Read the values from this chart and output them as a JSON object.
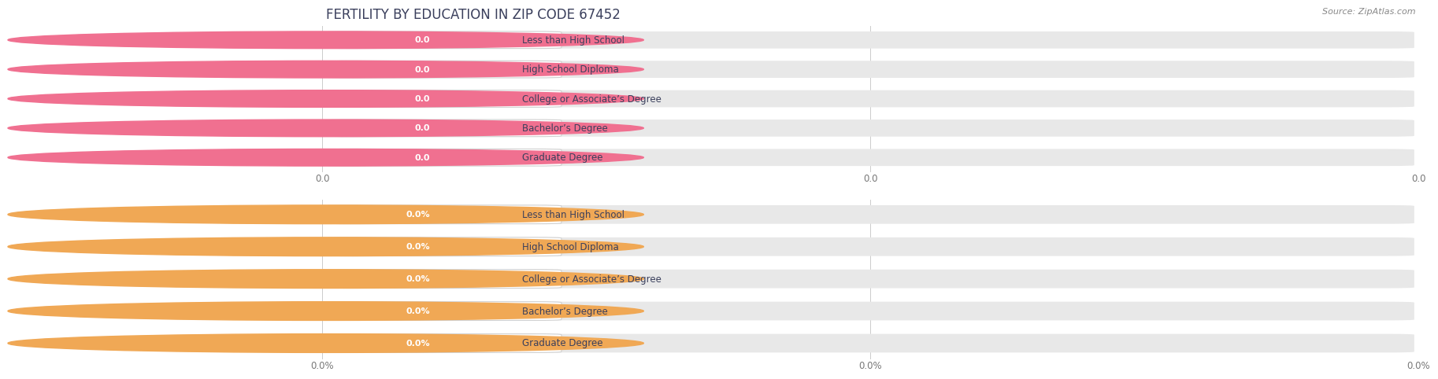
{
  "title": "FERTILITY BY EDUCATION IN ZIP CODE 67452",
  "source": "Source: ZipAtlas.com",
  "categories": [
    "Less than High School",
    "High School Diploma",
    "College or Associate’s Degree",
    "Bachelor’s Degree",
    "Graduate Degree"
  ],
  "top_values": [
    0.0,
    0.0,
    0.0,
    0.0,
    0.0
  ],
  "bottom_values": [
    0.0,
    0.0,
    0.0,
    0.0,
    0.0
  ],
  "top_bar_color": "#f5a8bc",
  "top_circle_color": "#f07090",
  "top_bar_bg": "#e8e8e8",
  "bottom_bar_color": "#f5c98a",
  "bottom_circle_color": "#f0a855",
  "bottom_bar_bg": "#e8e8e8",
  "title_color": "#3a3f5c",
  "label_text_color": "#3a3f5c",
  "value_text_color_top": "#ffffff",
  "value_text_color_bottom": "#ffffff",
  "background_color": "#ffffff",
  "row_sep_color": "#d8d8d8",
  "grid_color": "#cccccc",
  "tick_color": "#777777",
  "title_fontsize": 12,
  "label_fontsize": 8.5,
  "value_fontsize": 8,
  "tick_fontsize": 8.5,
  "source_fontsize": 8,
  "top_tick_labels": [
    "0.0",
    "0.0",
    "0.0"
  ],
  "bottom_tick_labels": [
    "0.0%",
    "0.0%",
    "0.0%"
  ],
  "n_ticks": 3
}
